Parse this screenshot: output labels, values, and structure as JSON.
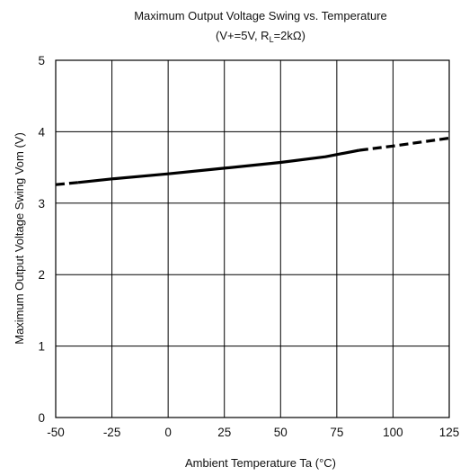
{
  "chart_data": {
    "type": "line",
    "title": "Maximum Output Voltage Swing vs. Temperature",
    "subtitle_prefix": "(V+=5V, R",
    "subtitle_sub": "L",
    "subtitle_suffix": "=2kΩ)",
    "xlabel": "Ambient Temperature Ta (°C)",
    "ylabel": "Maximum Output Voltage Swing Vom (V)",
    "xlim": [
      -50,
      125
    ],
    "ylim": [
      0,
      5
    ],
    "xticks": [
      -50,
      -25,
      0,
      25,
      50,
      75,
      100,
      125
    ],
    "yticks": [
      0,
      1,
      2,
      3,
      4,
      5
    ],
    "grid": true,
    "series": [
      {
        "style": "solid",
        "color": "#000000",
        "x": [
          -40,
          -25,
          0,
          25,
          50,
          70,
          85
        ],
        "y": [
          3.29,
          3.34,
          3.41,
          3.49,
          3.57,
          3.65,
          3.74
        ]
      },
      {
        "style": "dashed",
        "color": "#000000",
        "x": [
          -50,
          -40
        ],
        "y": [
          3.26,
          3.29
        ]
      },
      {
        "style": "dashed",
        "color": "#000000",
        "x": [
          85,
          100,
          125
        ],
        "y": [
          3.74,
          3.8,
          3.91
        ]
      }
    ]
  }
}
